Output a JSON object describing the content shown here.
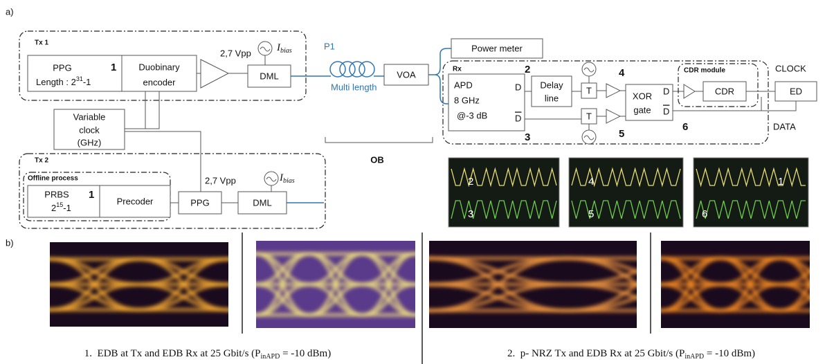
{
  "figure": {
    "panel_a_label": "a)",
    "panel_b_label": "b)",
    "tx1": {
      "title": "Tx 1",
      "ppg": "PPG",
      "ppg_number": "1",
      "length": {
        "base": "Length : 2",
        "sup": "31",
        "tail": "-1"
      },
      "encoder": [
        "Duobinary",
        "encoder"
      ],
      "amplitude": "2,7 Vpp",
      "dml": "DML",
      "bias": {
        "symbol": "I",
        "sub": "bias"
      }
    },
    "fiber": {
      "port": "P1",
      "length": "Multi length"
    },
    "voa": "VOA",
    "power_meter": "Power meter",
    "clock_source": [
      "Variable",
      "clock",
      "(GHz)"
    ],
    "ob": "OB",
    "tx2": {
      "title": "Tx 2",
      "offline_title": "Offline process",
      "prbs": "PRBS",
      "prbs_number": "1",
      "prbs_length": {
        "base": "2",
        "sup": "15",
        "tail": "-1"
      },
      "precoder": "Precoder",
      "ppg": "PPG",
      "amplitude": "2,7 Vpp",
      "dml": "DML",
      "bias": {
        "symbol": "I",
        "sub": "bias"
      }
    },
    "rx": {
      "title": "Rx",
      "apd": [
        "APD",
        "8 GHz",
        "@-3 dB"
      ],
      "output_d": "D",
      "output_dbar": "D",
      "point_2": "2",
      "point_3": "3",
      "delay_line": [
        "Delay",
        "line"
      ],
      "threshold_top": "T",
      "threshold_bottom": "T",
      "point_4": "4",
      "point_5": "5",
      "xor": [
        "XOR",
        "gate"
      ],
      "xor_d": "D",
      "xor_dbar": "D",
      "point_6": "6",
      "cdr_module": "CDR module",
      "cdr": "CDR",
      "ed": "ED",
      "clock": "CLOCK",
      "data": "DATA"
    },
    "scopes": [
      {
        "top": "2",
        "bottom": "3"
      },
      {
        "top": "4",
        "bottom": "5"
      },
      {
        "top": "1",
        "bottom": "6"
      }
    ],
    "captions": [
      {
        "text": "1.  EDB at Tx and EDB Rx at 25 Gbit/s (P",
        "sub": "inAPD",
        "tail": " = -10 dBm)"
      },
      {
        "text": "2.  p- NRZ Tx and EDB Rx at 25 Gbit/s (P",
        "sub": "inAPD",
        "tail": " = -10 dBm)"
      }
    ]
  }
}
